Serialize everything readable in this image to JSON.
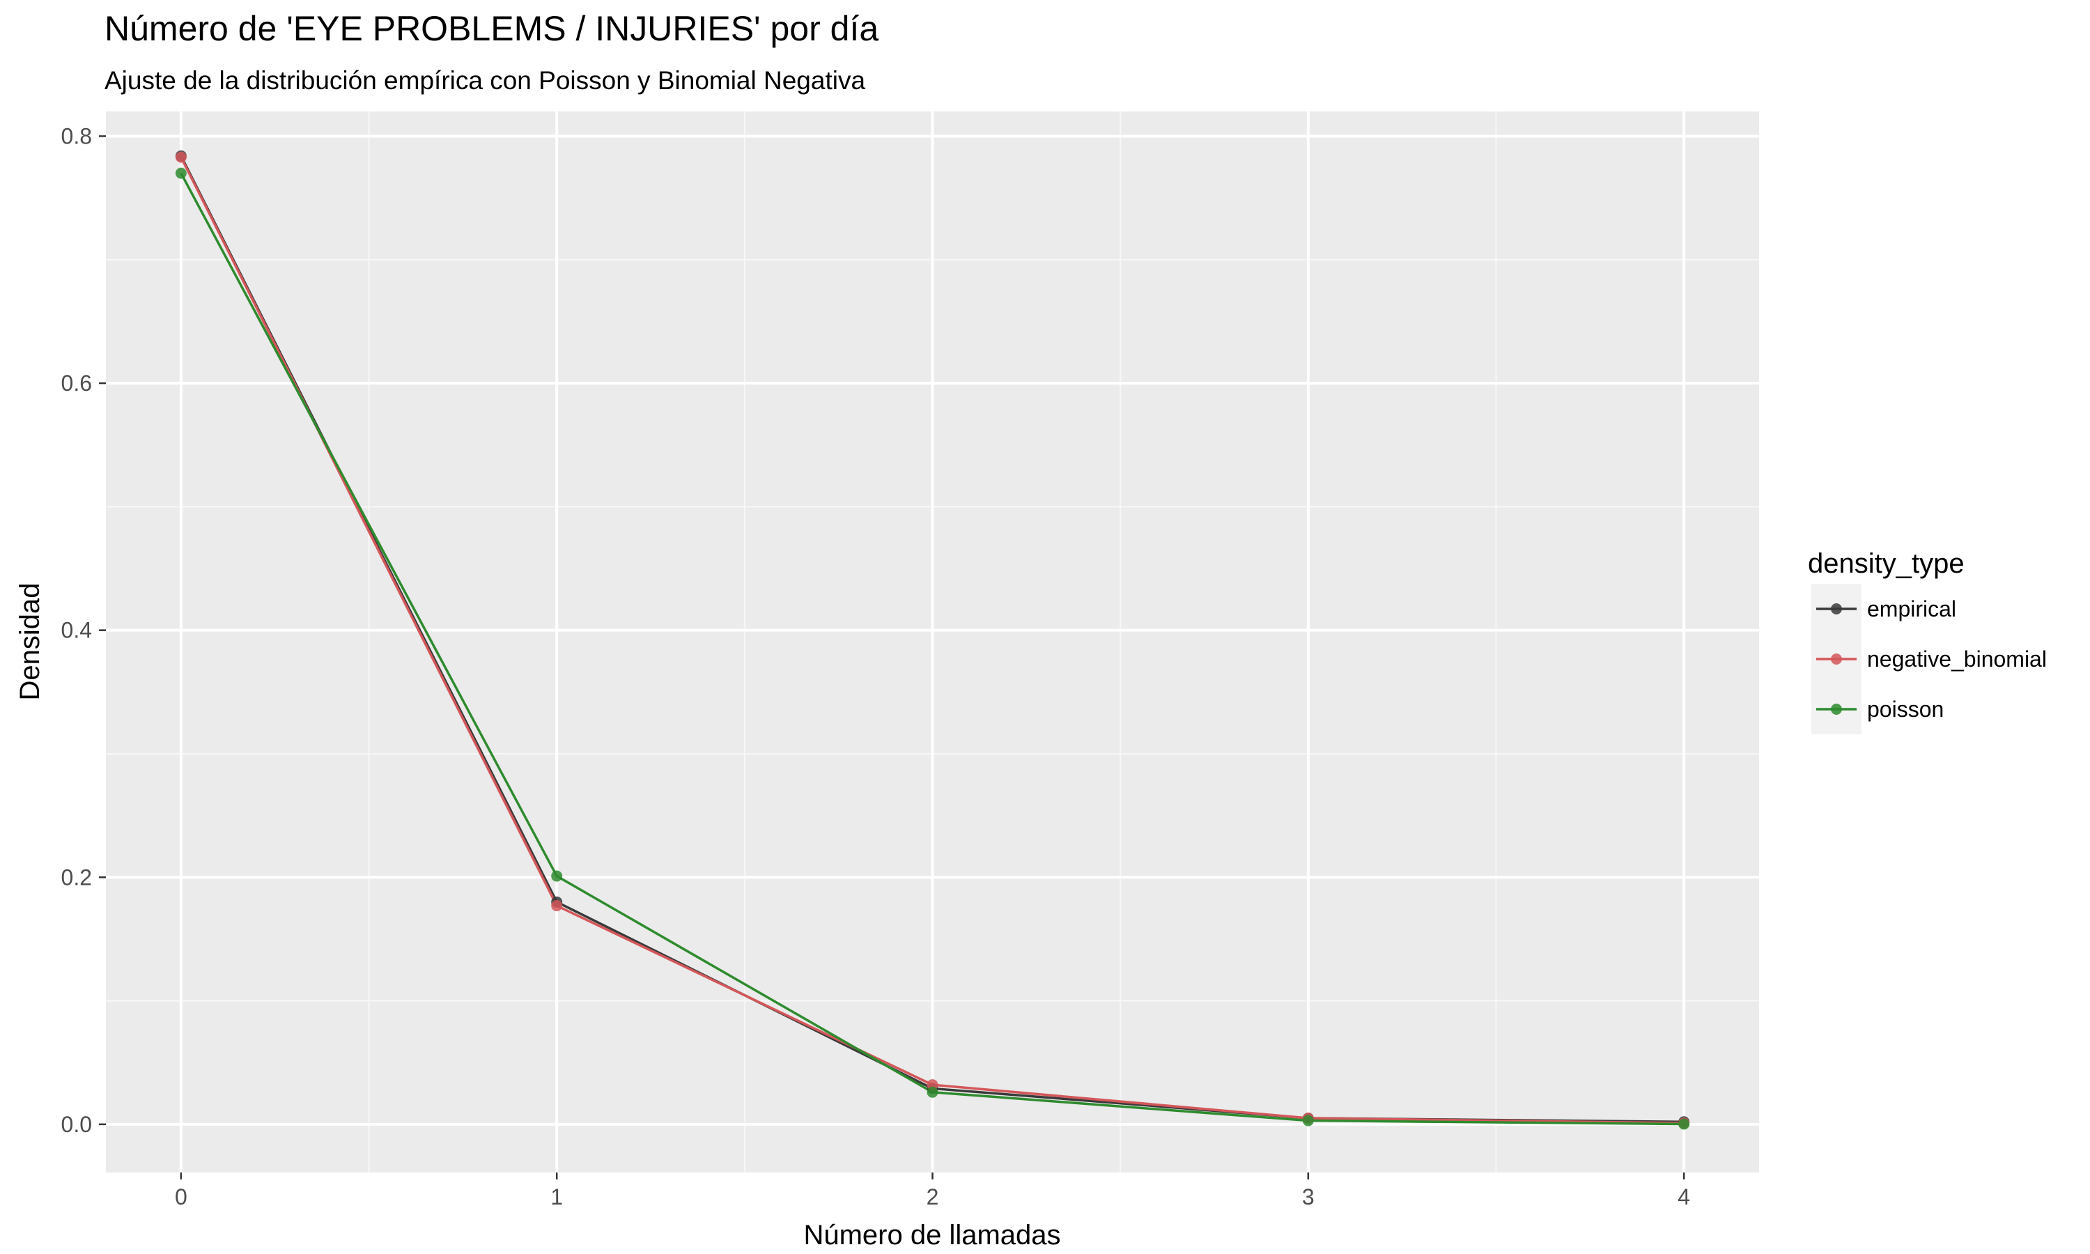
{
  "chart_data": {
    "type": "line",
    "title": "Número de 'EYE PROBLEMS / INJURIES' por día",
    "subtitle": "Ajuste de la distribución empírica con Poisson y Binomial Negativa",
    "xlabel": "Número de llamadas",
    "ylabel": "Densidad",
    "x": [
      0,
      1,
      2,
      3,
      4
    ],
    "xlim": [
      -0.2,
      4.2
    ],
    "ylim": [
      -0.039,
      0.82
    ],
    "xticks": [
      "0",
      "1",
      "2",
      "3",
      "4"
    ],
    "yticks": [
      "0.0",
      "0.2",
      "0.4",
      "0.6",
      "0.8"
    ],
    "grid": true,
    "legend": {
      "title": "density_type",
      "position": "right"
    },
    "series": [
      {
        "name": "empirical",
        "color": "#3a3a3a",
        "values": [
          0.784,
          0.18,
          0.029,
          0.005,
          0.002
        ]
      },
      {
        "name": "negative_binomial",
        "color": "#d4575a",
        "values": [
          0.783,
          0.177,
          0.032,
          0.005,
          0.001
        ]
      },
      {
        "name": "poisson",
        "color": "#2e8b2e",
        "values": [
          0.77,
          0.201,
          0.026,
          0.003,
          0.0002
        ]
      }
    ]
  }
}
